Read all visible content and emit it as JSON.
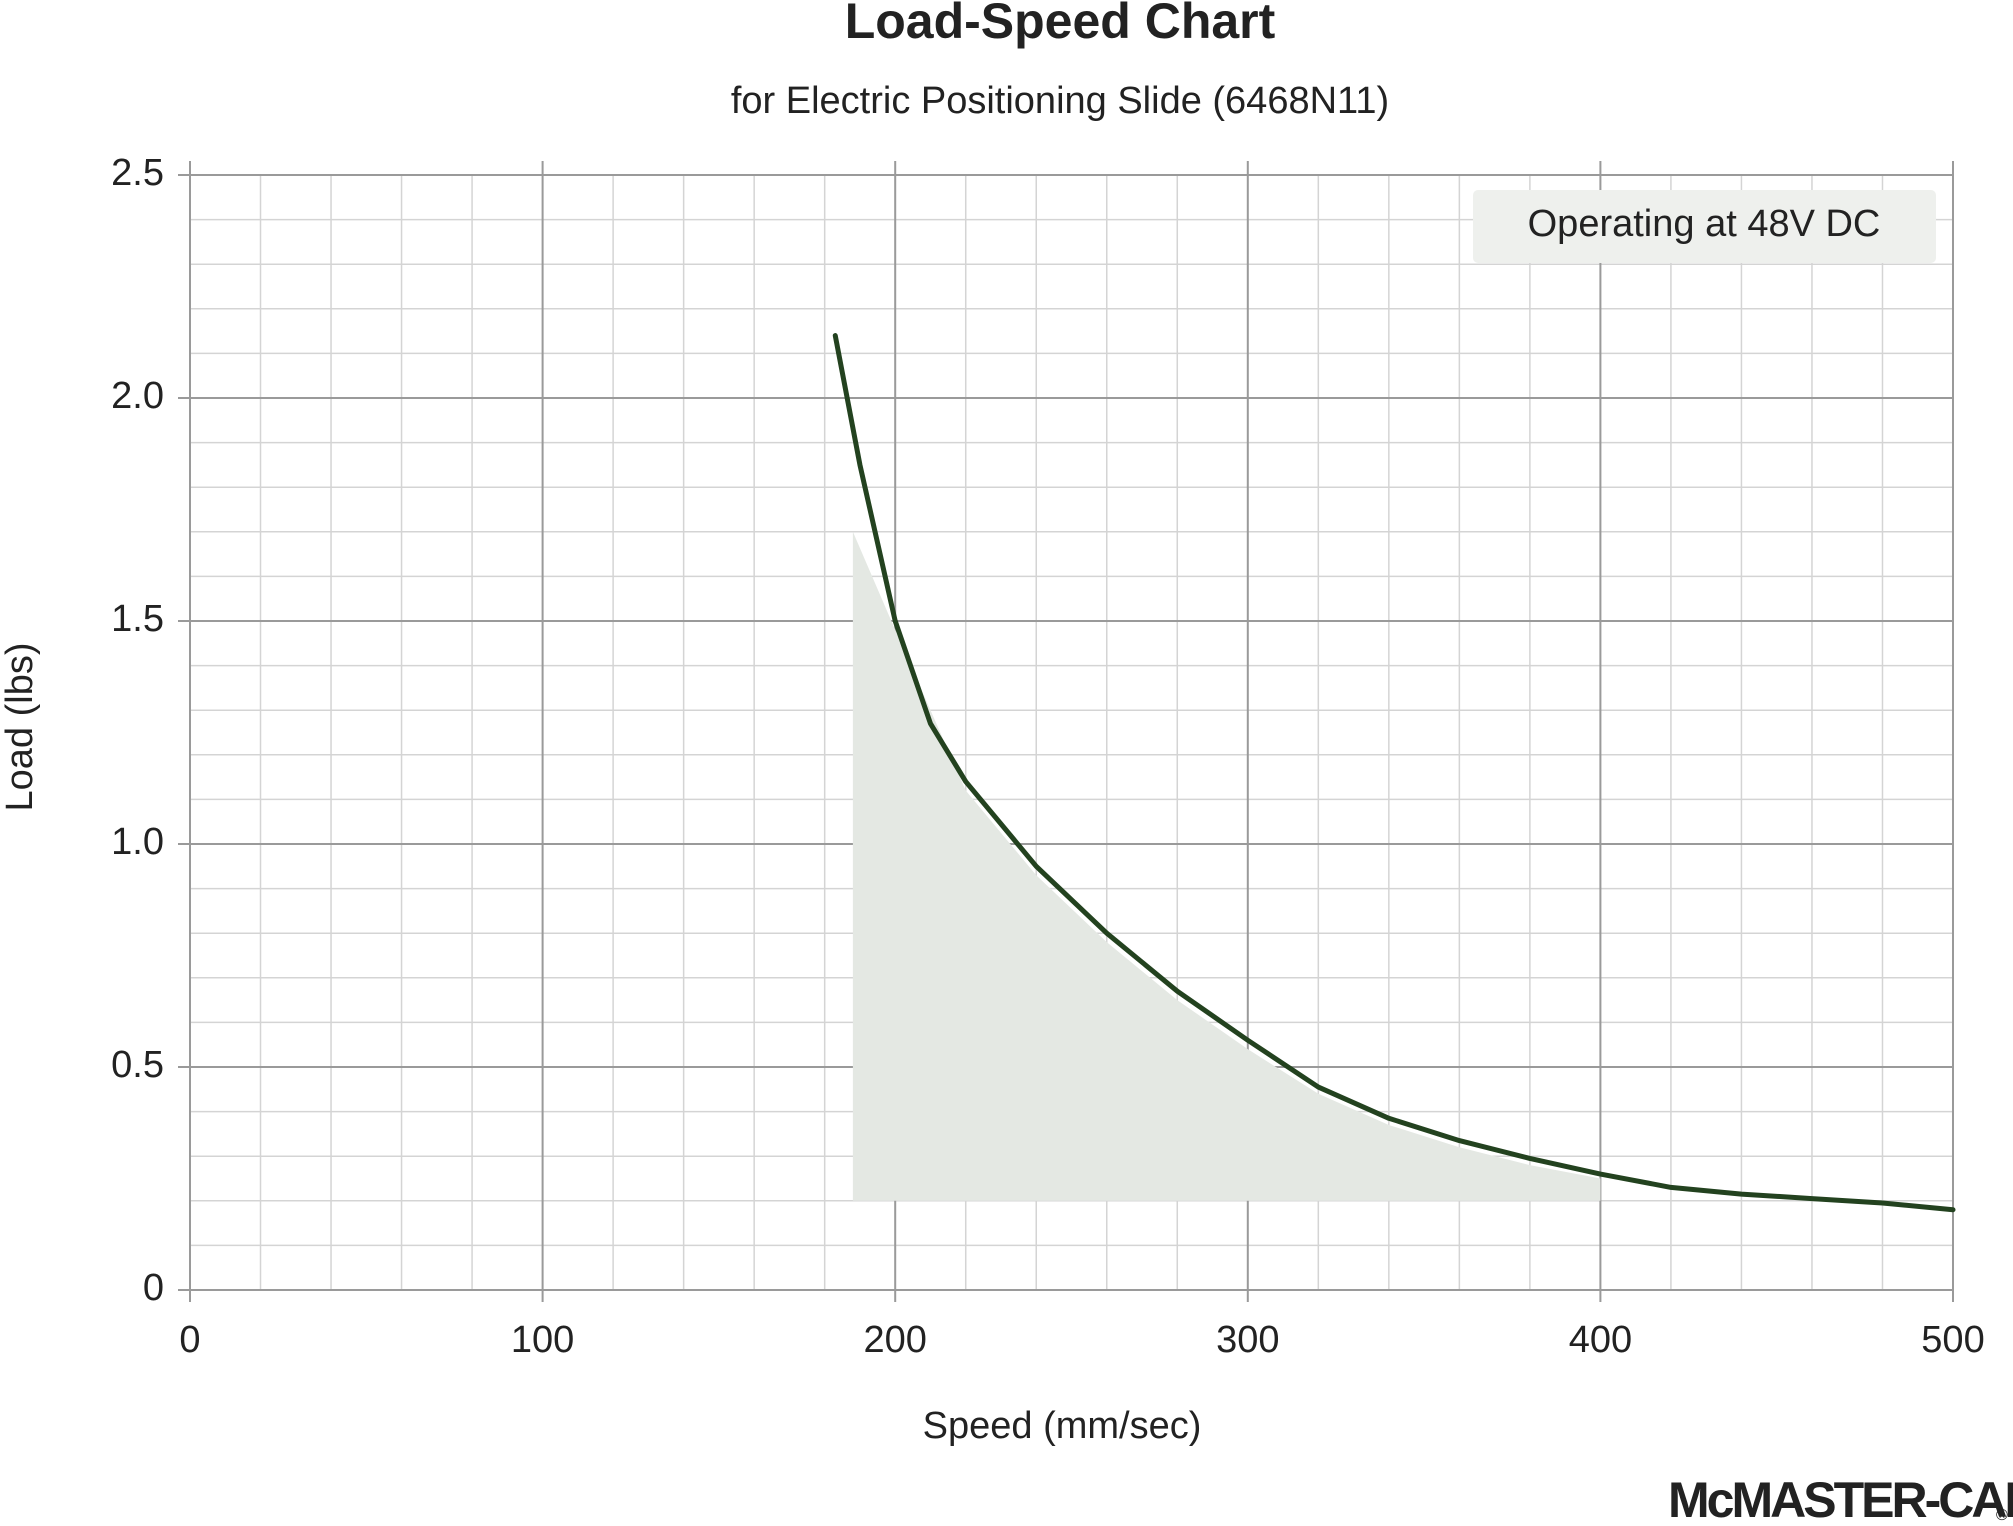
{
  "chart_data": {
    "type": "line",
    "title": "Load-Speed Chart",
    "subtitle": "for Electric Positioning Slide (6468N11)",
    "x_label": "Speed (mm/sec)",
    "y_label": "Load (lbs)",
    "annotation": "Operating at 48V DC",
    "logo": "McMASTER-CARR",
    "logo_mark": "®",
    "xlim": [
      0,
      500
    ],
    "ylim": [
      0,
      2.5
    ],
    "xticks": [
      0,
      100,
      200,
      300,
      400,
      500
    ],
    "yticks": [
      0,
      0.5,
      {
        "value": 1,
        "label": "1.0"
      },
      1.5,
      {
        "value": 2,
        "label": "2.0"
      },
      2.5
    ],
    "grid": true,
    "minor_grid": {
      "x_step": 20,
      "y_step": 0.1
    },
    "series": [
      {
        "color": "#23421f",
        "x": [
          183,
          190,
          200,
          210,
          220,
          240,
          260,
          280,
          300,
          320,
          340,
          360,
          380,
          400,
          420,
          440,
          460,
          480,
          500
        ],
        "values": [
          2.14,
          1.85,
          1.5,
          1.27,
          1.14,
          0.95,
          0.8,
          0.67,
          0.56,
          0.455,
          0.385,
          0.335,
          0.295,
          0.26,
          0.23,
          0.215,
          0.205,
          0.195,
          0.18
        ]
      }
    ],
    "fill_region": {
      "color": "#e4e8e3",
      "x": [
        188,
        188,
        200,
        220,
        240,
        260,
        280,
        300,
        320,
        340,
        360,
        380,
        400,
        400
      ],
      "y": [
        0.2,
        1.7,
        1.48,
        1.12,
        0.93,
        0.78,
        0.65,
        0.54,
        0.44,
        0.37,
        0.32,
        0.28,
        0.25,
        0.2
      ]
    }
  }
}
